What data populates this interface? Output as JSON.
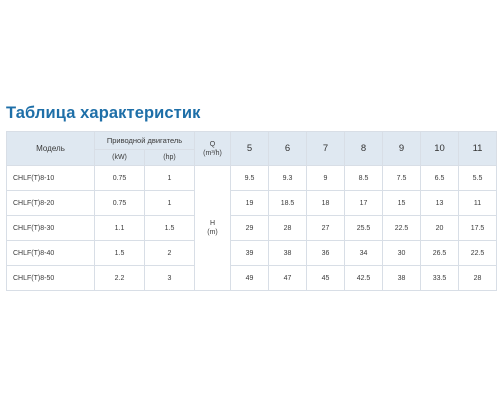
{
  "title": "Таблица характеристик",
  "table": {
    "model_header": "Модель",
    "motor_header": "Приводной двигатель",
    "kw_header": "(kW)",
    "hp_header": "(hp)",
    "flow_header_line1": "Q",
    "flow_header_line2": "(m³/h)",
    "flow_values": [
      "5",
      "6",
      "7",
      "8",
      "9",
      "10",
      "11"
    ],
    "head_label_line1": "H",
    "head_label_line2": "(m)",
    "rows": [
      {
        "model": "CHLF(T)8-10",
        "kw": "0.75",
        "hp": "1",
        "head": [
          "9.5",
          "9.3",
          "9",
          "8.5",
          "7.5",
          "6.5",
          "5.5"
        ]
      },
      {
        "model": "CHLF(T)8-20",
        "kw": "0.75",
        "hp": "1",
        "head": [
          "19",
          "18.5",
          "18",
          "17",
          "15",
          "13",
          "11"
        ]
      },
      {
        "model": "CHLF(T)8-30",
        "kw": "1.1",
        "hp": "1.5",
        "head": [
          "29",
          "28",
          "27",
          "25.5",
          "22.5",
          "20",
          "17.5"
        ]
      },
      {
        "model": "CHLF(T)8-40",
        "kw": "1.5",
        "hp": "2",
        "head": [
          "39",
          "38",
          "36",
          "34",
          "30",
          "26.5",
          "22.5"
        ]
      },
      {
        "model": "CHLF(T)8-50",
        "kw": "2.2",
        "hp": "3",
        "head": [
          "49",
          "47",
          "45",
          "42.5",
          "38",
          "33.5",
          "28"
        ]
      }
    ]
  }
}
